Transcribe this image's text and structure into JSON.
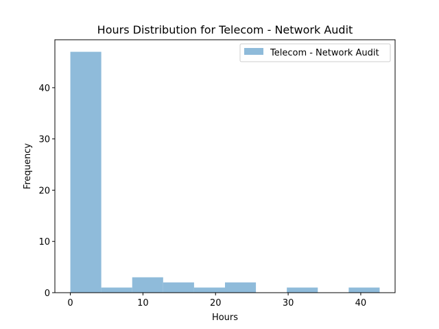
{
  "chart_data": {
    "type": "bar",
    "title": "Hours Distribution for Telecom - Network Audit",
    "xlabel": "Hours",
    "ylabel": "Frequency",
    "xlim": [
      -2.13,
      44.73
    ],
    "ylim": [
      0,
      49.35
    ],
    "x_ticks": [
      0,
      10,
      20,
      30,
      40
    ],
    "y_ticks": [
      0,
      10,
      20,
      30,
      40
    ],
    "grid": false,
    "legend_position": "top-right",
    "bar_color": "#8fbbda",
    "series": [
      {
        "name": "Telecom - Network Audit",
        "bins": [
          {
            "x0": 0.0,
            "x1": 4.26,
            "count": 47
          },
          {
            "x0": 4.26,
            "x1": 8.52,
            "count": 1
          },
          {
            "x0": 8.52,
            "x1": 12.78,
            "count": 3
          },
          {
            "x0": 12.78,
            "x1": 17.04,
            "count": 2
          },
          {
            "x0": 17.04,
            "x1": 21.3,
            "count": 1
          },
          {
            "x0": 21.3,
            "x1": 25.56,
            "count": 2
          },
          {
            "x0": 25.56,
            "x1": 29.82,
            "count": 0
          },
          {
            "x0": 29.82,
            "x1": 34.08,
            "count": 1
          },
          {
            "x0": 34.08,
            "x1": 38.34,
            "count": 0
          },
          {
            "x0": 38.34,
            "x1": 42.6,
            "count": 1
          }
        ]
      }
    ]
  }
}
